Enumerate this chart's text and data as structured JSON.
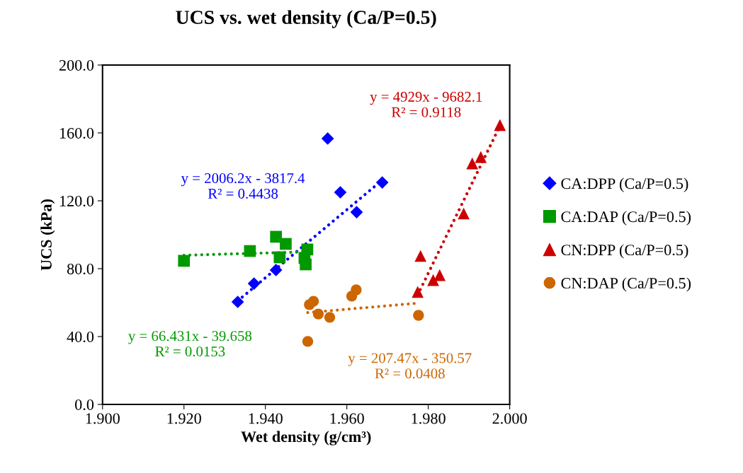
{
  "chart_data": {
    "type": "scatter",
    "title": "UCS vs. wet density (Ca/P=0.5)",
    "xlabel": "Wet density (g/cm³)",
    "ylabel": "UCS (kPa)",
    "xlim": [
      1.9,
      2.0
    ],
    "ylim": [
      0,
      200
    ],
    "xticks": [
      {
        "value": 1.9,
        "label": "1.900"
      },
      {
        "value": 1.92,
        "label": "1.920"
      },
      {
        "value": 1.94,
        "label": "1.940"
      },
      {
        "value": 1.96,
        "label": "1.960"
      },
      {
        "value": 1.98,
        "label": "1.980"
      },
      {
        "value": 2.0,
        "label": "2.000"
      }
    ],
    "yticks": [
      {
        "value": 0,
        "label": "0.0"
      },
      {
        "value": 40,
        "label": "40.0"
      },
      {
        "value": 80,
        "label": "80.0"
      },
      {
        "value": 120,
        "label": "120.0"
      },
      {
        "value": 160,
        "label": "160.0"
      },
      {
        "value": 200,
        "label": "200.0"
      }
    ],
    "grid": false,
    "legend": "right",
    "series": [
      {
        "name": "CA:DPP (Ca/P=0.5)",
        "color": "#0000ff",
        "marker": "diamond",
        "x": [
          1.9332,
          1.9372,
          1.9426,
          1.9553,
          1.9584,
          1.9624,
          1.9687
        ],
        "values": [
          60.4,
          71.2,
          79.2,
          156.7,
          125.0,
          113.3,
          130.8
        ]
      },
      {
        "name": "CA:DAP (Ca/P=0.5)",
        "color": "#009900",
        "marker": "square",
        "x": [
          1.92,
          1.9362,
          1.9426,
          1.945,
          1.9435,
          1.9503,
          1.9496,
          1.9499
        ],
        "values": [
          84.6,
          90.4,
          98.8,
          94.6,
          86.7,
          91.3,
          86.3,
          82.5
        ]
      },
      {
        "name": "CN:DPP (Ca/P=0.5)",
        "color": "#cc0000",
        "marker": "triangle",
        "x": [
          1.9774,
          1.9781,
          1.9812,
          1.9828,
          1.9887,
          1.9908,
          1.9929,
          1.9976
        ],
        "values": [
          66.3,
          87.5,
          73.3,
          76.2,
          112.5,
          142.0,
          145.8,
          164.6
        ]
      },
      {
        "name": "CN:DAP (Ca/P=0.5)",
        "color": "#cc6600",
        "marker": "circle",
        "x": [
          1.9508,
          1.9518,
          1.953,
          1.9558,
          1.9612,
          1.9623,
          1.9504,
          1.9776
        ],
        "values": [
          58.8,
          60.8,
          53.3,
          51.3,
          63.8,
          67.5,
          37.1,
          52.5
        ]
      },
      {
        "type": "line",
        "color": "#0000ff",
        "line_style": "dotted",
        "x": [
          1.9332,
          1.9687
        ],
        "values": [
          61.0,
          132.2
        ]
      },
      {
        "type": "line",
        "color": "#009900",
        "line_style": "dotted",
        "x": [
          1.92,
          1.9503
        ],
        "values": [
          87.9,
          89.9
        ]
      },
      {
        "type": "line",
        "color": "#cc0000",
        "line_style": "dotted",
        "x": [
          1.9774,
          1.9976
        ],
        "values": [
          64.5,
          164.1
        ]
      },
      {
        "type": "line",
        "color": "#cc6600",
        "line_style": "dotted",
        "x": [
          1.9504,
          1.9776
        ],
        "values": [
          54.1,
          59.7
        ]
      }
    ],
    "annotations": [
      "y = 2006.2x - 3817.4\nR² = 0.4438",
      "y = 66.431x - 39.658\nR² = 0.0153",
      "y = 4929x - 9682.1\nR² = 0.9118",
      "y = 207.47x - 350.57\nR² = 0.0408"
    ]
  }
}
